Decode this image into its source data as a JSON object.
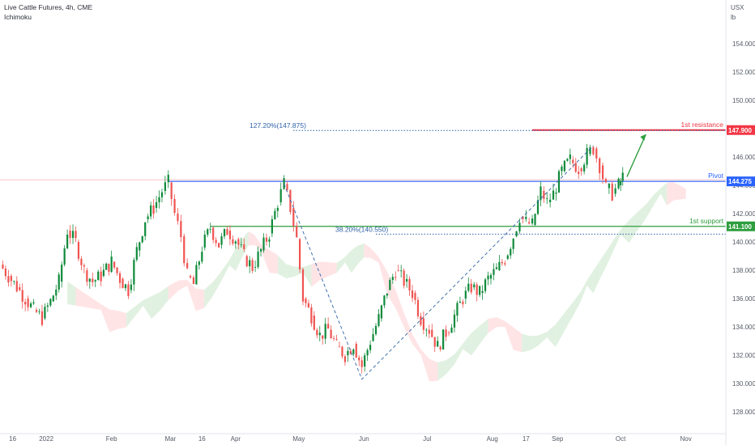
{
  "header": {
    "symbol_line": "Live Cattle Futures, 4h, CME",
    "indicator": "Ichimoku",
    "currency": "USX",
    "unit": "lb"
  },
  "colors": {
    "candle_up": "#26a69a",
    "candle_up_dark": "#0f8a3a",
    "candle_down": "#ef5350",
    "pivot": "#2962ff",
    "resistance": "#f23645",
    "support": "#2e9e3e",
    "fib": "#2e63a8",
    "cloud_bull": "#c8e6c9",
    "cloud_bear": "#ffcdd2"
  },
  "chart_data": {
    "type": "candlestick",
    "ylim": [
      127,
      156
    ],
    "y_ticks": [
      128,
      130,
      132,
      134,
      136,
      138,
      140,
      142,
      144,
      146,
      148,
      150,
      152,
      154
    ],
    "y_tick_labels": [
      "128.000",
      "130.000",
      "132.000",
      "134.000",
      "136.000",
      "138.000",
      "140.000",
      "142.000",
      "144.000",
      "146.000",
      "148.000",
      "150.000",
      "152.000",
      "154.000"
    ],
    "x_tick_labels": [
      "16",
      "2022",
      "Feb",
      "Mar",
      "16",
      "Apr",
      "May",
      "Jun",
      "Jul",
      "Aug",
      "17",
      "Sep",
      "Oct",
      "Nov"
    ],
    "x_range": [
      "2021-12-10",
      "2022-11-20"
    ],
    "x_ticks": [
      "2021-12-16",
      "2022-01-01",
      "2022-02-01",
      "2022-03-01",
      "2022-03-16",
      "2022-04-01",
      "2022-05-01",
      "2022-06-01",
      "2022-07-01",
      "2022-08-01",
      "2022-08-17",
      "2022-09-01",
      "2022-10-01",
      "2022-11-01"
    ],
    "series": [
      {
        "values": [
          {
            "date": "2021-12-10",
            "close": 138.4
          },
          {
            "date": "2021-12-14",
            "close": 137.6
          },
          {
            "date": "2021-12-18",
            "close": 136.8
          },
          {
            "date": "2021-12-22",
            "close": 136.0
          },
          {
            "date": "2021-12-26",
            "close": 135.2
          },
          {
            "date": "2021-12-30",
            "close": 134.6
          },
          {
            "date": "2022-01-03",
            "close": 135.8
          },
          {
            "date": "2022-01-07",
            "close": 137.2
          },
          {
            "date": "2022-01-11",
            "close": 140.8
          },
          {
            "date": "2022-01-15",
            "close": 140.0
          },
          {
            "date": "2022-01-19",
            "close": 138.0
          },
          {
            "date": "2022-01-23",
            "close": 137.2
          },
          {
            "date": "2022-01-27",
            "close": 137.6
          },
          {
            "date": "2022-02-01",
            "close": 138.6
          },
          {
            "date": "2022-02-05",
            "close": 137.4
          },
          {
            "date": "2022-02-09",
            "close": 136.6
          },
          {
            "date": "2022-02-13",
            "close": 139.4
          },
          {
            "date": "2022-02-17",
            "close": 141.6
          },
          {
            "date": "2022-02-21",
            "close": 142.4
          },
          {
            "date": "2022-02-25",
            "close": 143.6
          },
          {
            "date": "2022-02-28",
            "close": 144.2
          },
          {
            "date": "2022-03-03",
            "close": 142.0
          },
          {
            "date": "2022-03-06",
            "close": 140.4
          },
          {
            "date": "2022-03-09",
            "close": 137.6
          },
          {
            "date": "2022-03-12",
            "close": 137.0
          },
          {
            "date": "2022-03-16",
            "close": 139.6
          },
          {
            "date": "2022-03-20",
            "close": 141.0
          },
          {
            "date": "2022-03-24",
            "close": 139.8
          },
          {
            "date": "2022-03-28",
            "close": 140.8
          },
          {
            "date": "2022-04-01",
            "close": 140.2
          },
          {
            "date": "2022-04-05",
            "close": 139.0
          },
          {
            "date": "2022-04-09",
            "close": 138.2
          },
          {
            "date": "2022-04-13",
            "close": 139.4
          },
          {
            "date": "2022-04-17",
            "close": 140.6
          },
          {
            "date": "2022-04-21",
            "close": 142.8
          },
          {
            "date": "2022-04-24",
            "close": 144.1
          },
          {
            "date": "2022-04-27",
            "close": 142.4
          },
          {
            "date": "2022-04-30",
            "close": 140.2
          },
          {
            "date": "2022-05-03",
            "close": 136.0
          },
          {
            "date": "2022-05-07",
            "close": 134.8
          },
          {
            "date": "2022-05-11",
            "close": 133.4
          },
          {
            "date": "2022-05-15",
            "close": 133.8
          },
          {
            "date": "2022-05-19",
            "close": 132.6
          },
          {
            "date": "2022-05-23",
            "close": 132.0
          },
          {
            "date": "2022-05-27",
            "close": 132.8
          },
          {
            "date": "2022-05-31",
            "close": 131.2
          },
          {
            "date": "2022-06-04",
            "close": 133.0
          },
          {
            "date": "2022-06-08",
            "close": 134.6
          },
          {
            "date": "2022-06-12",
            "close": 136.6
          },
          {
            "date": "2022-06-16",
            "close": 138.0
          },
          {
            "date": "2022-06-20",
            "close": 137.2
          },
          {
            "date": "2022-06-24",
            "close": 136.4
          },
          {
            "date": "2022-06-28",
            "close": 134.6
          },
          {
            "date": "2022-07-02",
            "close": 133.8
          },
          {
            "date": "2022-07-06",
            "close": 132.6
          },
          {
            "date": "2022-07-10",
            "close": 133.6
          },
          {
            "date": "2022-07-14",
            "close": 134.8
          },
          {
            "date": "2022-07-18",
            "close": 136.0
          },
          {
            "date": "2022-07-22",
            "close": 136.8
          },
          {
            "date": "2022-07-26",
            "close": 136.4
          },
          {
            "date": "2022-07-30",
            "close": 137.4
          },
          {
            "date": "2022-08-03",
            "close": 138.0
          },
          {
            "date": "2022-08-07",
            "close": 138.8
          },
          {
            "date": "2022-08-11",
            "close": 140.4
          },
          {
            "date": "2022-08-14",
            "close": 141.8
          },
          {
            "date": "2022-08-17",
            "close": 141.4
          },
          {
            "date": "2022-08-20",
            "close": 141.2
          },
          {
            "date": "2022-08-24",
            "close": 143.6
          },
          {
            "date": "2022-08-27",
            "close": 142.8
          },
          {
            "date": "2022-08-30",
            "close": 143.4
          },
          {
            "date": "2022-09-03",
            "close": 145.0
          },
          {
            "date": "2022-09-07",
            "close": 145.8
          },
          {
            "date": "2022-09-11",
            "close": 145.2
          },
          {
            "date": "2022-09-15",
            "close": 146.2
          },
          {
            "date": "2022-09-18",
            "close": 146.6
          },
          {
            "date": "2022-09-21",
            "close": 145.4
          },
          {
            "date": "2022-09-24",
            "close": 143.8
          },
          {
            "date": "2022-09-27",
            "close": 143.4
          },
          {
            "date": "2022-09-30",
            "close": 144.0
          },
          {
            "date": "2022-10-02",
            "close": 144.6
          }
        ]
      }
    ],
    "levels": [
      {
        "name": "1st resistance",
        "value": 147.9,
        "tag": "147.900"
      },
      {
        "name": "Pivot",
        "value": 144.275,
        "tag": "144.275"
      },
      {
        "name": "1st support",
        "value": 141.1,
        "tag": "141.100"
      }
    ],
    "fib_levels": [
      {
        "label": "127.20%(147.875)",
        "value": 147.875
      },
      {
        "label": "38.20%(140.550)",
        "value": 140.55
      }
    ],
    "projection_arrow": {
      "from": {
        "date": "2022-10-04",
        "value": 144.6
      },
      "to": {
        "date": "2022-10-13",
        "value": 147.6
      }
    }
  }
}
